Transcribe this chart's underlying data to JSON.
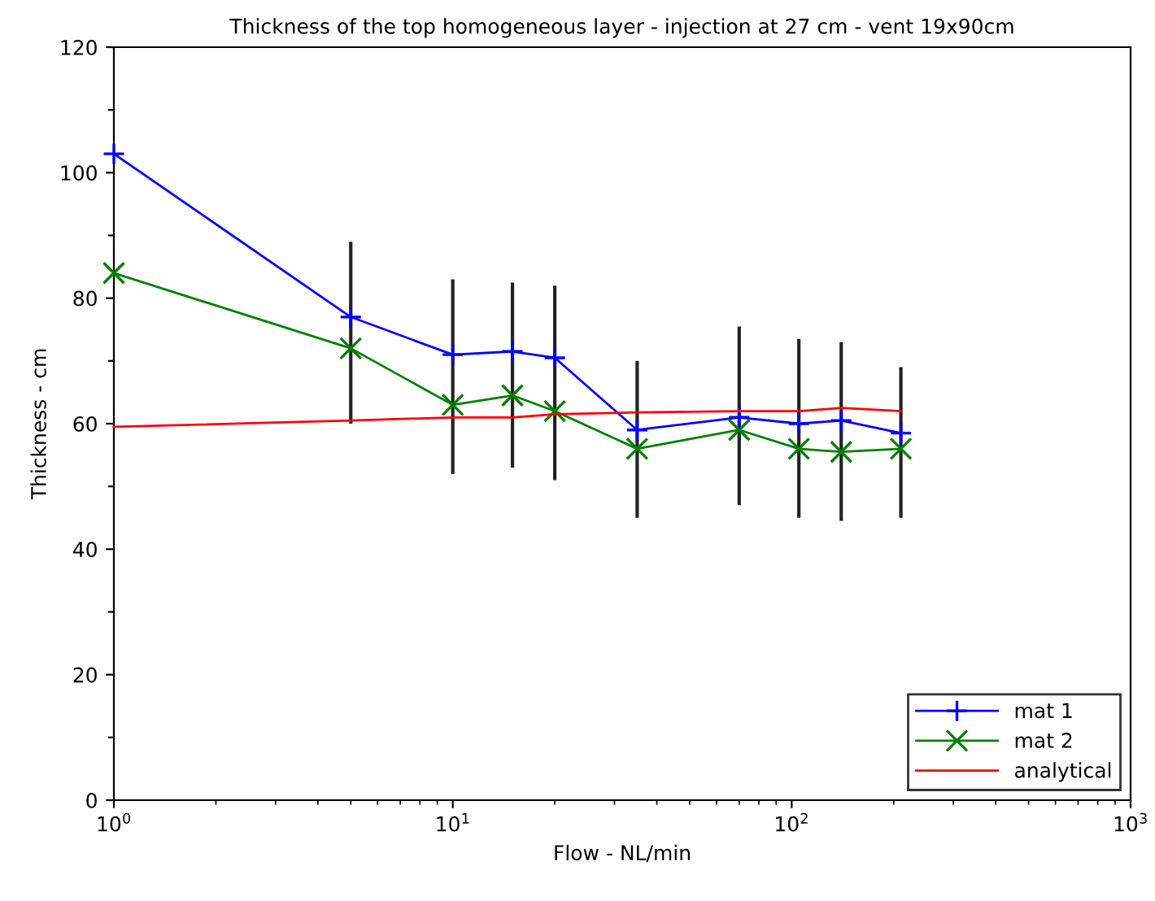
{
  "chart_data": {
    "type": "line",
    "title": "Thickness of the top homogeneous layer - injection at 27 cm - vent 19x90cm",
    "xlabel": "Flow - NL/min",
    "ylabel": "Thickness - cm",
    "x": [
      1,
      5,
      10,
      15,
      20,
      35,
      70,
      105,
      140,
      210
    ],
    "series": [
      {
        "name": "mat 1",
        "color": "#0000ff",
        "marker": "plus",
        "values": [
          103,
          77,
          71,
          71.5,
          70.5,
          59,
          61,
          60,
          60.5,
          58.5
        ],
        "errors": [
          null,
          [
            60,
            89
          ],
          [
            52,
            83
          ],
          [
            53,
            82.5
          ],
          [
            51,
            82
          ],
          [
            45,
            70
          ],
          [
            47,
            75.5
          ],
          [
            45,
            73.5
          ],
          [
            44.5,
            73
          ],
          [
            45,
            69
          ]
        ]
      },
      {
        "name": "mat 2",
        "color": "#008000",
        "marker": "cross",
        "values": [
          84,
          72,
          63,
          64.5,
          62,
          56,
          59,
          56,
          55.5,
          56
        ]
      },
      {
        "name": "analytical",
        "color": "#ff0000",
        "marker": "none",
        "values": [
          59.5,
          60.5,
          61,
          61,
          61.5,
          61.8,
          62,
          62,
          62.5,
          62
        ]
      }
    ],
    "log": "x",
    "xlim": [
      1,
      1000
    ],
    "xticks": [
      {
        "value": 1,
        "label": "10$^{0}$"
      },
      {
        "value": 10,
        "label": "10$^{1}$"
      },
      {
        "value": 100,
        "label": "10$^{2}$"
      },
      {
        "value": 1000,
        "label": "10$^{3}$"
      }
    ],
    "ylim": [
      0,
      120
    ],
    "yticks": [
      0,
      {
        "value": 10,
        "label": null
      },
      20,
      {
        "value": 30,
        "label": null
      },
      40,
      {
        "value": 50,
        "label": null
      },
      60,
      {
        "value": 70,
        "label": null
      },
      80,
      {
        "value": 90,
        "label": null
      },
      100,
      {
        "value": 110,
        "label": null
      },
      120
    ],
    "grid": false,
    "legend": "bottom right"
  }
}
